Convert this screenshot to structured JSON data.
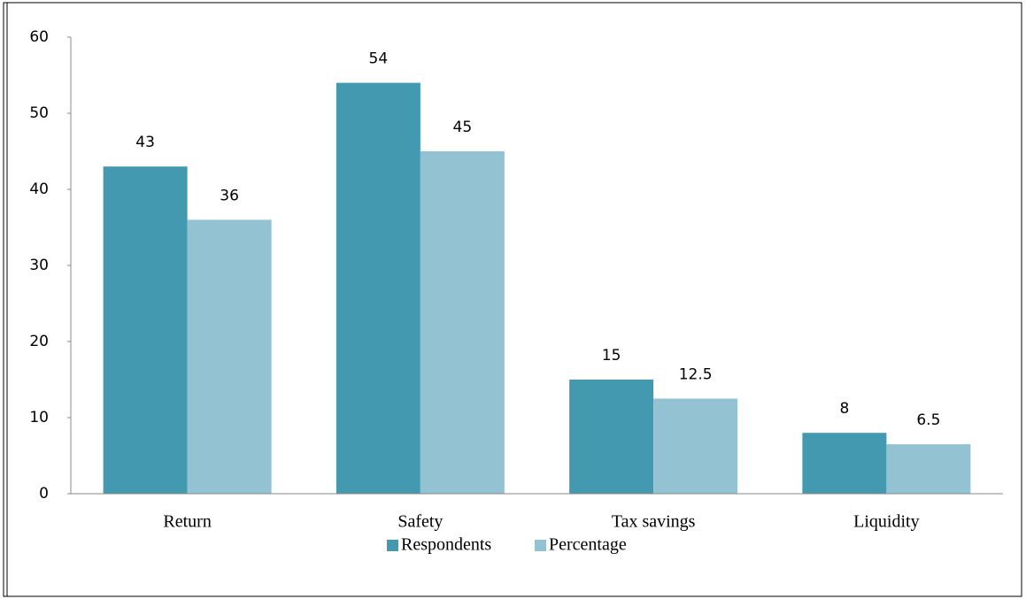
{
  "chart_data": {
    "type": "bar",
    "categories": [
      "Return",
      "Safety",
      "Tax savings",
      "Liquidity"
    ],
    "series": [
      {
        "name": "Respondents",
        "color": "#4399b0",
        "values": [
          43,
          54,
          15,
          8
        ]
      },
      {
        "name": "Percentage",
        "color": "#93c3d3",
        "values": [
          36,
          45,
          12.5,
          6.5
        ]
      }
    ],
    "ylim": [
      0,
      60
    ],
    "yticks": [
      0,
      10,
      20,
      30,
      40,
      50,
      60
    ],
    "grid": false,
    "legend": "bottom"
  }
}
